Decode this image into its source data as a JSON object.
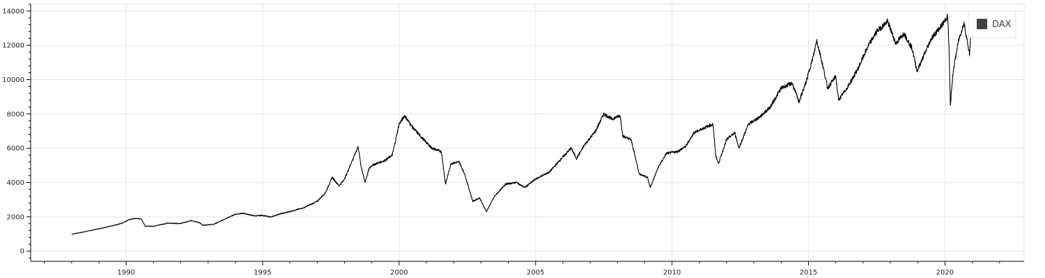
{
  "chart_data": {
    "type": "line",
    "title": "",
    "xlabel": "",
    "ylabel": "",
    "xlim": [
      1986.5,
      2022.9
    ],
    "ylim": [
      -600,
      14400
    ],
    "x_ticks": [
      1990,
      1995,
      2000,
      2005,
      2010,
      2015,
      2020
    ],
    "y_ticks": [
      0,
      2000,
      4000,
      6000,
      8000,
      10000,
      12000,
      14000
    ],
    "grid": true,
    "legend": {
      "placement": "top-right",
      "entries": [
        {
          "label": "DAX",
          "color": "#404040"
        }
      ]
    },
    "series": [
      {
        "name": "DAX",
        "color": "#000000",
        "points": [
          [
            1988.0,
            980
          ],
          [
            1988.5,
            1130
          ],
          [
            1989.0,
            1300
          ],
          [
            1989.5,
            1470
          ],
          [
            1989.85,
            1630
          ],
          [
            1990.1,
            1830
          ],
          [
            1990.3,
            1900
          ],
          [
            1990.55,
            1880
          ],
          [
            1990.7,
            1450
          ],
          [
            1991.0,
            1450
          ],
          [
            1991.5,
            1620
          ],
          [
            1992.0,
            1610
          ],
          [
            1992.4,
            1780
          ],
          [
            1992.7,
            1650
          ],
          [
            1992.8,
            1500
          ],
          [
            1993.2,
            1560
          ],
          [
            1993.6,
            1850
          ],
          [
            1994.0,
            2150
          ],
          [
            1994.3,
            2200
          ],
          [
            1994.7,
            2050
          ],
          [
            1995.0,
            2080
          ],
          [
            1995.3,
            1980
          ],
          [
            1995.6,
            2150
          ],
          [
            1996.0,
            2300
          ],
          [
            1996.5,
            2520
          ],
          [
            1997.0,
            2900
          ],
          [
            1997.3,
            3400
          ],
          [
            1997.55,
            4300
          ],
          [
            1997.8,
            3800
          ],
          [
            1998.0,
            4200
          ],
          [
            1998.5,
            6100
          ],
          [
            1998.6,
            5000
          ],
          [
            1998.75,
            4000
          ],
          [
            1998.9,
            4800
          ],
          [
            1999.0,
            5000
          ],
          [
            1999.5,
            5300
          ],
          [
            1999.75,
            5600
          ],
          [
            2000.0,
            7400
          ],
          [
            2000.2,
            7900
          ],
          [
            2000.5,
            7200
          ],
          [
            2000.9,
            6500
          ],
          [
            2001.2,
            6000
          ],
          [
            2001.55,
            5800
          ],
          [
            2001.7,
            3900
          ],
          [
            2001.9,
            5100
          ],
          [
            2002.2,
            5200
          ],
          [
            2002.4,
            4500
          ],
          [
            2002.7,
            2900
          ],
          [
            2002.95,
            3100
          ],
          [
            2003.2,
            2300
          ],
          [
            2003.5,
            3200
          ],
          [
            2003.9,
            3900
          ],
          [
            2004.3,
            4000
          ],
          [
            2004.6,
            3700
          ],
          [
            2005.0,
            4200
          ],
          [
            2005.5,
            4600
          ],
          [
            2005.95,
            5400
          ],
          [
            2006.3,
            6000
          ],
          [
            2006.5,
            5400
          ],
          [
            2006.8,
            6200
          ],
          [
            2007.2,
            7000
          ],
          [
            2007.5,
            8000
          ],
          [
            2007.8,
            7700
          ],
          [
            2008.1,
            7900
          ],
          [
            2008.2,
            6700
          ],
          [
            2008.5,
            6500
          ],
          [
            2008.8,
            4500
          ],
          [
            2009.1,
            4300
          ],
          [
            2009.2,
            3700
          ],
          [
            2009.5,
            4900
          ],
          [
            2009.8,
            5700
          ],
          [
            2010.2,
            5800
          ],
          [
            2010.5,
            6100
          ],
          [
            2010.8,
            6900
          ],
          [
            2011.2,
            7200
          ],
          [
            2011.5,
            7400
          ],
          [
            2011.6,
            5600
          ],
          [
            2011.7,
            5100
          ],
          [
            2012.0,
            6500
          ],
          [
            2012.3,
            6900
          ],
          [
            2012.45,
            6000
          ],
          [
            2012.8,
            7400
          ],
          [
            2013.2,
            7800
          ],
          [
            2013.6,
            8400
          ],
          [
            2014.0,
            9500
          ],
          [
            2014.4,
            9800
          ],
          [
            2014.65,
            8700
          ],
          [
            2014.9,
            9800
          ],
          [
            2015.2,
            11500
          ],
          [
            2015.3,
            12300
          ],
          [
            2015.5,
            11000
          ],
          [
            2015.7,
            9500
          ],
          [
            2016.0,
            10200
          ],
          [
            2016.1,
            8800
          ],
          [
            2016.45,
            9600
          ],
          [
            2016.8,
            10600
          ],
          [
            2017.2,
            12000
          ],
          [
            2017.5,
            12800
          ],
          [
            2017.9,
            13400
          ],
          [
            2018.2,
            12100
          ],
          [
            2018.5,
            12700
          ],
          [
            2018.8,
            11800
          ],
          [
            2018.98,
            10500
          ],
          [
            2019.2,
            11300
          ],
          [
            2019.5,
            12400
          ],
          [
            2019.9,
            13200
          ],
          [
            2020.1,
            13700
          ],
          [
            2020.15,
            11800
          ],
          [
            2020.2,
            8500
          ],
          [
            2020.3,
            10500
          ],
          [
            2020.5,
            12300
          ],
          [
            2020.7,
            13300
          ],
          [
            2020.9,
            11500
          ],
          [
            2020.95,
            12700
          ]
        ]
      }
    ]
  }
}
